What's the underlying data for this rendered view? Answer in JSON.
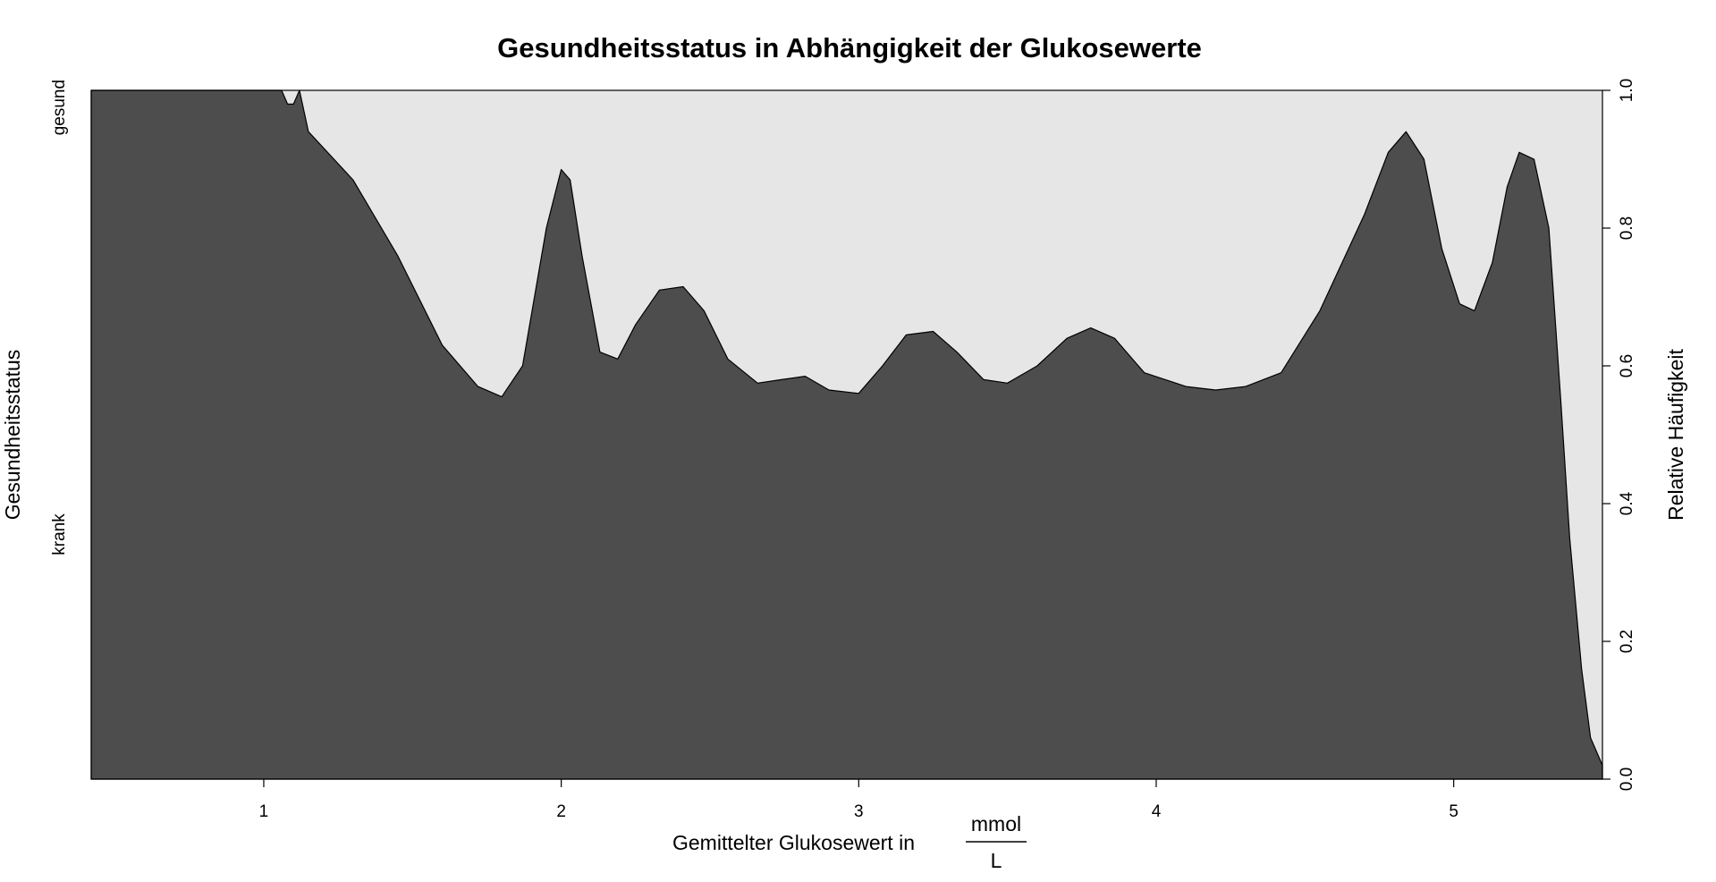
{
  "chart_data": {
    "type": "area",
    "subtype": "conditional-density (spineplot)",
    "title": "Gesundheitsstatus in Abhängigkeit der Glukosewerte",
    "xlabel_prefix": "Gemittelter Glukosewert in",
    "xlabel_unit_numerator": "mmol",
    "xlabel_unit_denominator": "L",
    "ylabel_left": "Gesundheitsstatus",
    "ylabel_right": "Relative Häufigkeit",
    "categories": [
      "krank",
      "gesund"
    ],
    "xlim": [
      0.42,
      5.5
    ],
    "ylim": [
      0,
      1
    ],
    "x_ticks": [
      "1",
      "2",
      "3",
      "4",
      "5"
    ],
    "y_ticks": [
      "0.0",
      "0.2",
      "0.4",
      "0.6",
      "0.8",
      "1.0"
    ],
    "colors": {
      "krank": "#4d4d4d",
      "gesund": "#e6e6e6"
    },
    "series": [
      {
        "name": "krank",
        "x": [
          0.42,
          0.6,
          0.8,
          1.0,
          1.06,
          1.08,
          1.1,
          1.12,
          1.15,
          1.3,
          1.45,
          1.6,
          1.72,
          1.8,
          1.87,
          1.95,
          2.0,
          2.03,
          2.07,
          2.13,
          2.19,
          2.25,
          2.33,
          2.41,
          2.48,
          2.56,
          2.66,
          2.74,
          2.82,
          2.9,
          3.0,
          3.08,
          3.16,
          3.25,
          3.33,
          3.42,
          3.5,
          3.6,
          3.7,
          3.78,
          3.86,
          3.96,
          4.1,
          4.2,
          4.3,
          4.42,
          4.55,
          4.7,
          4.78,
          4.84,
          4.9,
          4.96,
          5.02,
          5.07,
          5.13,
          5.18,
          5.22,
          5.27,
          5.32,
          5.36,
          5.39,
          5.43,
          5.46,
          5.5
        ],
        "values": [
          1.0,
          1.0,
          1.0,
          1.0,
          1.0,
          0.98,
          0.98,
          1.0,
          0.94,
          0.87,
          0.76,
          0.63,
          0.57,
          0.555,
          0.6,
          0.8,
          0.885,
          0.87,
          0.76,
          0.62,
          0.61,
          0.66,
          0.71,
          0.715,
          0.68,
          0.61,
          0.575,
          0.58,
          0.585,
          0.565,
          0.56,
          0.6,
          0.645,
          0.65,
          0.62,
          0.58,
          0.575,
          0.6,
          0.64,
          0.655,
          0.64,
          0.59,
          0.57,
          0.565,
          0.57,
          0.59,
          0.68,
          0.82,
          0.91,
          0.94,
          0.9,
          0.77,
          0.69,
          0.68,
          0.75,
          0.86,
          0.91,
          0.9,
          0.8,
          0.55,
          0.35,
          0.16,
          0.06,
          0.02
        ]
      },
      {
        "name": "gesund",
        "note_values_are_complement": "1 - krank"
      }
    ]
  }
}
